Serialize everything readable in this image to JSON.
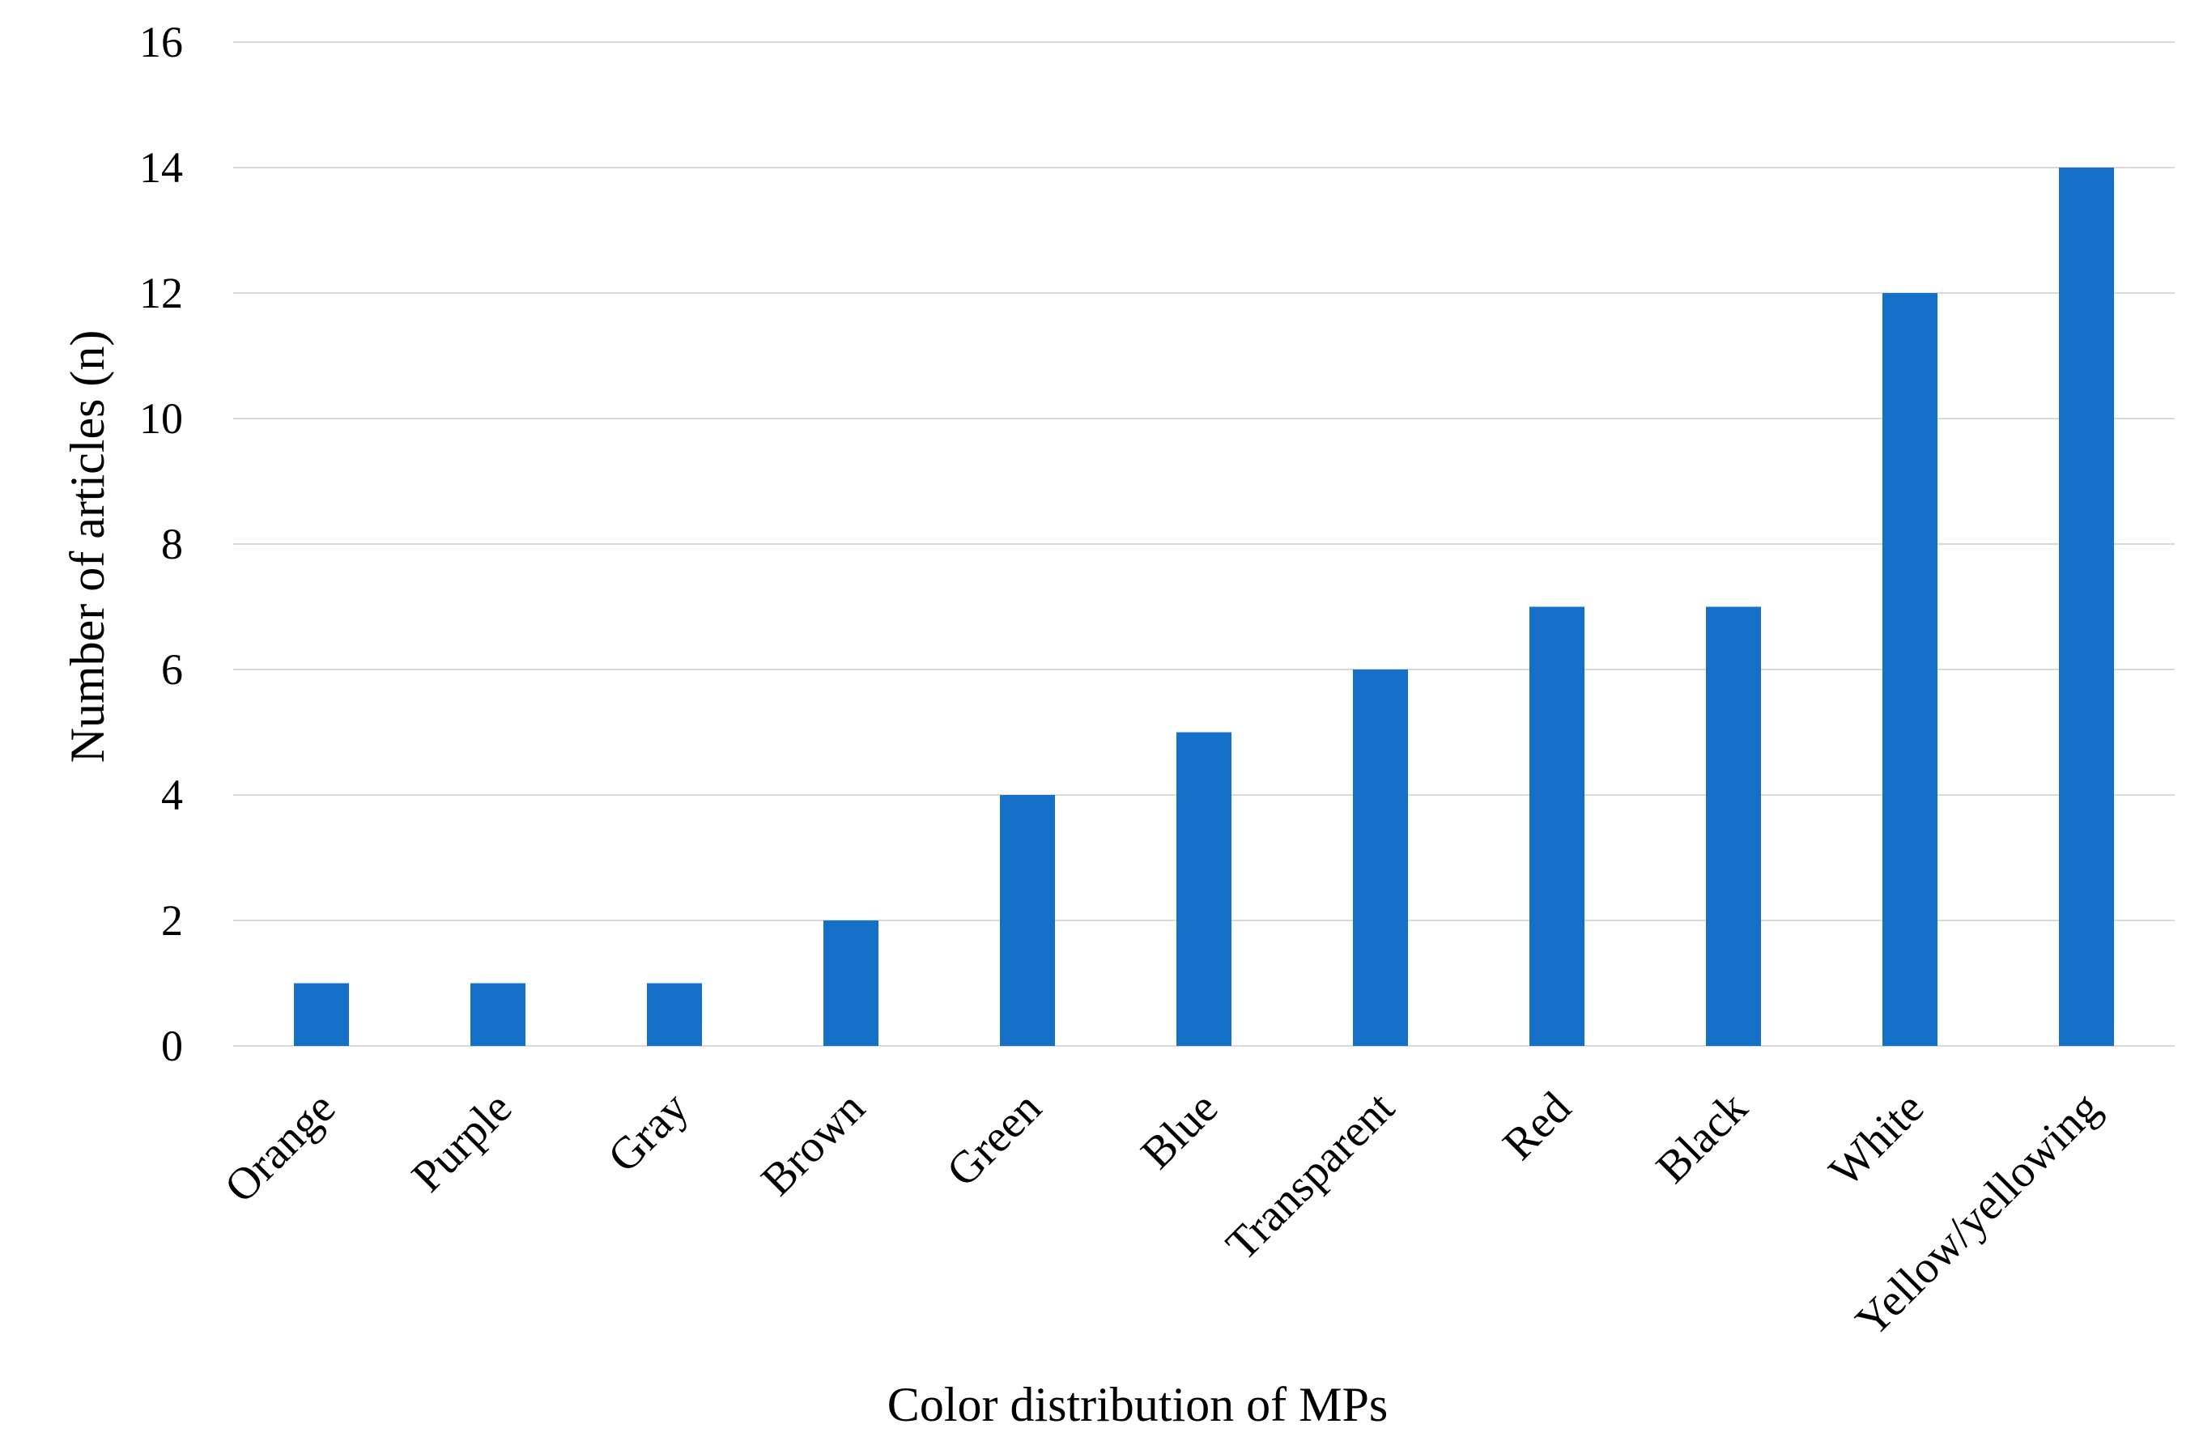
{
  "chart_data": {
    "type": "bar",
    "title": "",
    "xlabel": "Color distribution of MPs",
    "ylabel": "Number of  articles (n)",
    "categories": [
      "Orange",
      "Purple",
      "Gray",
      "Brown",
      "Green",
      "Blue",
      "Transparent",
      "Red",
      "Black",
      "White",
      "Yellow/yellowing"
    ],
    "values": [
      1,
      1,
      1,
      2,
      4,
      5,
      6,
      7,
      7,
      12,
      14
    ],
    "ylim": [
      0,
      16
    ],
    "yticks": [
      "0",
      "2",
      "4",
      "6",
      "8",
      "10",
      "12",
      "14",
      "16"
    ],
    "grid": true,
    "legend": "none",
    "bar_color": "#1570C8",
    "grid_color": "#D9D9D9"
  }
}
